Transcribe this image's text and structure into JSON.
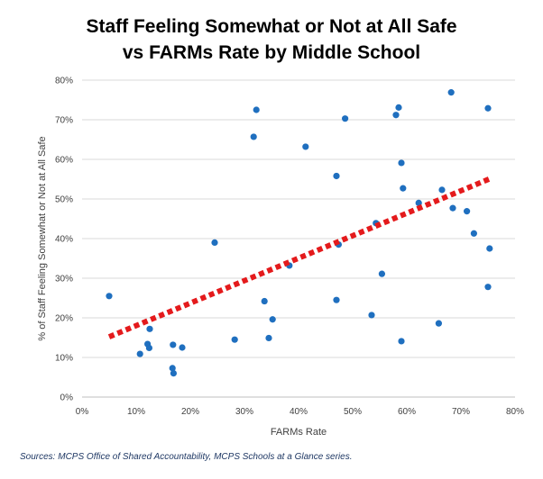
{
  "chart_data": {
    "type": "scatter",
    "title_line1": "Staff Feeling Somewhat or Not at All Safe",
    "title_line2": "vs FARMs Rate by Middle School",
    "xlabel": "FARMs Rate",
    "ylabel": "% of Staff Feeling Somewhat or Not at All Safe",
    "xlim": [
      0,
      0.8
    ],
    "ylim": [
      0,
      0.8
    ],
    "x_ticks": [
      0,
      0.1,
      0.2,
      0.3,
      0.4,
      0.5,
      0.6,
      0.7,
      0.8
    ],
    "y_ticks": [
      0,
      0.1,
      0.2,
      0.3,
      0.4,
      0.5,
      0.6,
      0.7,
      0.8
    ],
    "x_tick_labels": [
      "0%",
      "10%",
      "20%",
      "30%",
      "40%",
      "50%",
      "60%",
      "70%",
      "80%"
    ],
    "y_tick_labels": [
      "0%",
      "10%",
      "20%",
      "30%",
      "40%",
      "50%",
      "60%",
      "70%",
      "80%"
    ],
    "grid": "horizontal",
    "point_color": "#1f6fbf",
    "trend_color": "#e41a1c",
    "points": [
      {
        "x": 0.05,
        "y": 0.255
      },
      {
        "x": 0.107,
        "y": 0.109
      },
      {
        "x": 0.121,
        "y": 0.134
      },
      {
        "x": 0.124,
        "y": 0.124
      },
      {
        "x": 0.125,
        "y": 0.172
      },
      {
        "x": 0.167,
        "y": 0.073
      },
      {
        "x": 0.168,
        "y": 0.132
      },
      {
        "x": 0.169,
        "y": 0.06
      },
      {
        "x": 0.185,
        "y": 0.125
      },
      {
        "x": 0.245,
        "y": 0.39
      },
      {
        "x": 0.282,
        "y": 0.145
      },
      {
        "x": 0.317,
        "y": 0.657
      },
      {
        "x": 0.322,
        "y": 0.725
      },
      {
        "x": 0.337,
        "y": 0.242
      },
      {
        "x": 0.345,
        "y": 0.149
      },
      {
        "x": 0.352,
        "y": 0.196
      },
      {
        "x": 0.383,
        "y": 0.332
      },
      {
        "x": 0.413,
        "y": 0.632
      },
      {
        "x": 0.47,
        "y": 0.558
      },
      {
        "x": 0.47,
        "y": 0.245
      },
      {
        "x": 0.474,
        "y": 0.385
      },
      {
        "x": 0.486,
        "y": 0.703
      },
      {
        "x": 0.535,
        "y": 0.207
      },
      {
        "x": 0.543,
        "y": 0.439
      },
      {
        "x": 0.554,
        "y": 0.311
      },
      {
        "x": 0.58,
        "y": 0.712
      },
      {
        "x": 0.585,
        "y": 0.731
      },
      {
        "x": 0.59,
        "y": 0.591
      },
      {
        "x": 0.59,
        "y": 0.141
      },
      {
        "x": 0.593,
        "y": 0.527
      },
      {
        "x": 0.622,
        "y": 0.49
      },
      {
        "x": 0.659,
        "y": 0.186
      },
      {
        "x": 0.665,
        "y": 0.523
      },
      {
        "x": 0.682,
        "y": 0.769
      },
      {
        "x": 0.685,
        "y": 0.477
      },
      {
        "x": 0.711,
        "y": 0.469
      },
      {
        "x": 0.724,
        "y": 0.413
      },
      {
        "x": 0.75,
        "y": 0.729
      },
      {
        "x": 0.75,
        "y": 0.278
      },
      {
        "x": 0.753,
        "y": 0.375
      }
    ],
    "trendline": {
      "x": [
        0.05,
        0.755
      ],
      "y": [
        0.152,
        0.552
      ]
    }
  },
  "source": "Sources: MCPS Office of Shared Accountability, MCPS Schools at a Glance series."
}
